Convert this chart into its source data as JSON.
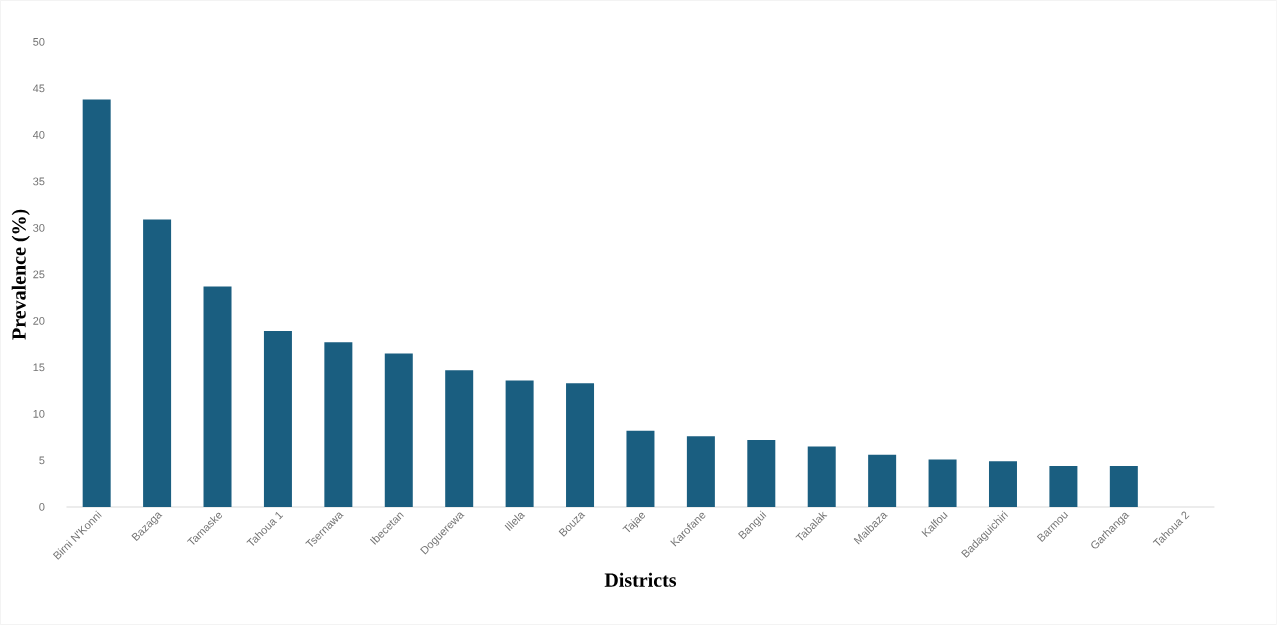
{
  "chart_data": {
    "type": "bar",
    "xlabel": "Districts",
    "ylabel": "Prevalence (%)",
    "categories": [
      "Birni N'Konni",
      "Bazaga",
      "Tamaske",
      "Tahoua 1",
      "Tsernawa",
      "Ibecetan",
      "Doguerewa",
      "Illela",
      "Bouza",
      "Tajae",
      "Karofane",
      "Bangui",
      "Tabalak",
      "Malbaza",
      "Kalfou",
      "Badaguichiri",
      "Barmou",
      "Garhanga",
      "Tahoua 2"
    ],
    "values": [
      43.8,
      30.9,
      23.7,
      18.9,
      17.7,
      16.5,
      14.7,
      13.6,
      13.3,
      8.2,
      7.6,
      7.2,
      6.5,
      5.6,
      5.1,
      4.9,
      4.4,
      4.4,
      0
    ],
    "color": "#1a5e80",
    "ylim": [
      0,
      50
    ],
    "yticks": [
      0,
      5,
      10,
      15,
      20,
      25,
      30,
      35,
      40,
      45,
      50
    ]
  }
}
